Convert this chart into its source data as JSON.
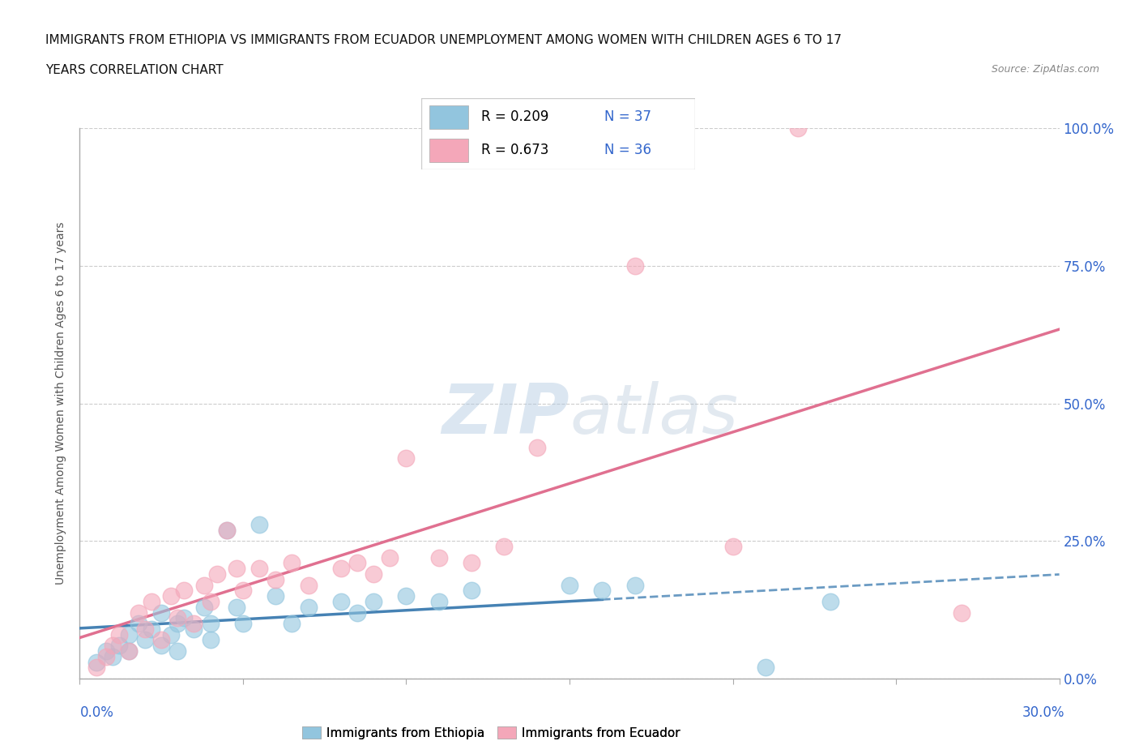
{
  "title_line1": "IMMIGRANTS FROM ETHIOPIA VS IMMIGRANTS FROM ECUADOR UNEMPLOYMENT AMONG WOMEN WITH CHILDREN AGES 6 TO 17",
  "title_line2": "YEARS CORRELATION CHART",
  "source": "Source: ZipAtlas.com",
  "ylabel": "Unemployment Among Women with Children Ages 6 to 17 years",
  "yticks": [
    "0.0%",
    "25.0%",
    "50.0%",
    "75.0%",
    "100.0%"
  ],
  "ytick_vals": [
    0.0,
    0.25,
    0.5,
    0.75,
    1.0
  ],
  "xlim": [
    0.0,
    0.3
  ],
  "ylim": [
    0.0,
    1.0
  ],
  "watermark": "ZIPatlas",
  "ethiopia_color": "#92c5de",
  "ecuador_color": "#f4a7b9",
  "ethiopia_line_color": "#4682b4",
  "ecuador_line_color": "#e07090",
  "ethiopia_scatter": [
    [
      0.005,
      0.03
    ],
    [
      0.008,
      0.05
    ],
    [
      0.01,
      0.04
    ],
    [
      0.012,
      0.06
    ],
    [
      0.015,
      0.08
    ],
    [
      0.015,
      0.05
    ],
    [
      0.018,
      0.1
    ],
    [
      0.02,
      0.07
    ],
    [
      0.022,
      0.09
    ],
    [
      0.025,
      0.06
    ],
    [
      0.025,
      0.12
    ],
    [
      0.028,
      0.08
    ],
    [
      0.03,
      0.1
    ],
    [
      0.03,
      0.05
    ],
    [
      0.032,
      0.11
    ],
    [
      0.035,
      0.09
    ],
    [
      0.038,
      0.13
    ],
    [
      0.04,
      0.1
    ],
    [
      0.04,
      0.07
    ],
    [
      0.045,
      0.27
    ],
    [
      0.048,
      0.13
    ],
    [
      0.05,
      0.1
    ],
    [
      0.055,
      0.28
    ],
    [
      0.06,
      0.15
    ],
    [
      0.065,
      0.1
    ],
    [
      0.07,
      0.13
    ],
    [
      0.08,
      0.14
    ],
    [
      0.085,
      0.12
    ],
    [
      0.09,
      0.14
    ],
    [
      0.1,
      0.15
    ],
    [
      0.11,
      0.14
    ],
    [
      0.12,
      0.16
    ],
    [
      0.15,
      0.17
    ],
    [
      0.16,
      0.16
    ],
    [
      0.17,
      0.17
    ],
    [
      0.21,
      0.02
    ],
    [
      0.23,
      0.14
    ]
  ],
  "ecuador_scatter": [
    [
      0.005,
      0.02
    ],
    [
      0.008,
      0.04
    ],
    [
      0.01,
      0.06
    ],
    [
      0.012,
      0.08
    ],
    [
      0.015,
      0.05
    ],
    [
      0.018,
      0.12
    ],
    [
      0.02,
      0.09
    ],
    [
      0.022,
      0.14
    ],
    [
      0.025,
      0.07
    ],
    [
      0.028,
      0.15
    ],
    [
      0.03,
      0.11
    ],
    [
      0.032,
      0.16
    ],
    [
      0.035,
      0.1
    ],
    [
      0.038,
      0.17
    ],
    [
      0.04,
      0.14
    ],
    [
      0.042,
      0.19
    ],
    [
      0.045,
      0.27
    ],
    [
      0.048,
      0.2
    ],
    [
      0.05,
      0.16
    ],
    [
      0.055,
      0.2
    ],
    [
      0.06,
      0.18
    ],
    [
      0.065,
      0.21
    ],
    [
      0.07,
      0.17
    ],
    [
      0.08,
      0.2
    ],
    [
      0.085,
      0.21
    ],
    [
      0.09,
      0.19
    ],
    [
      0.095,
      0.22
    ],
    [
      0.1,
      0.4
    ],
    [
      0.11,
      0.22
    ],
    [
      0.12,
      0.21
    ],
    [
      0.13,
      0.24
    ],
    [
      0.14,
      0.42
    ],
    [
      0.17,
      0.75
    ],
    [
      0.2,
      0.24
    ],
    [
      0.22,
      1.0
    ],
    [
      0.27,
      0.12
    ]
  ]
}
